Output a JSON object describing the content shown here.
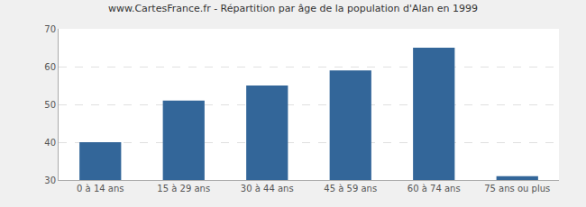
{
  "chart_data": {
    "type": "bar",
    "title": "www.CartesFrance.fr - Répartition par âge de la population d'Alan en 1999",
    "categories": [
      "0 à 14 ans",
      "15 à 29 ans",
      "30 à 44 ans",
      "45 à 59 ans",
      "60 à 74 ans",
      "75 ans ou plus"
    ],
    "values": [
      40,
      51,
      55,
      59,
      65,
      31
    ],
    "color": "#336699",
    "ylim": [
      30,
      70
    ],
    "yticks": [
      30,
      40,
      50,
      60,
      70
    ],
    "grid": true
  }
}
